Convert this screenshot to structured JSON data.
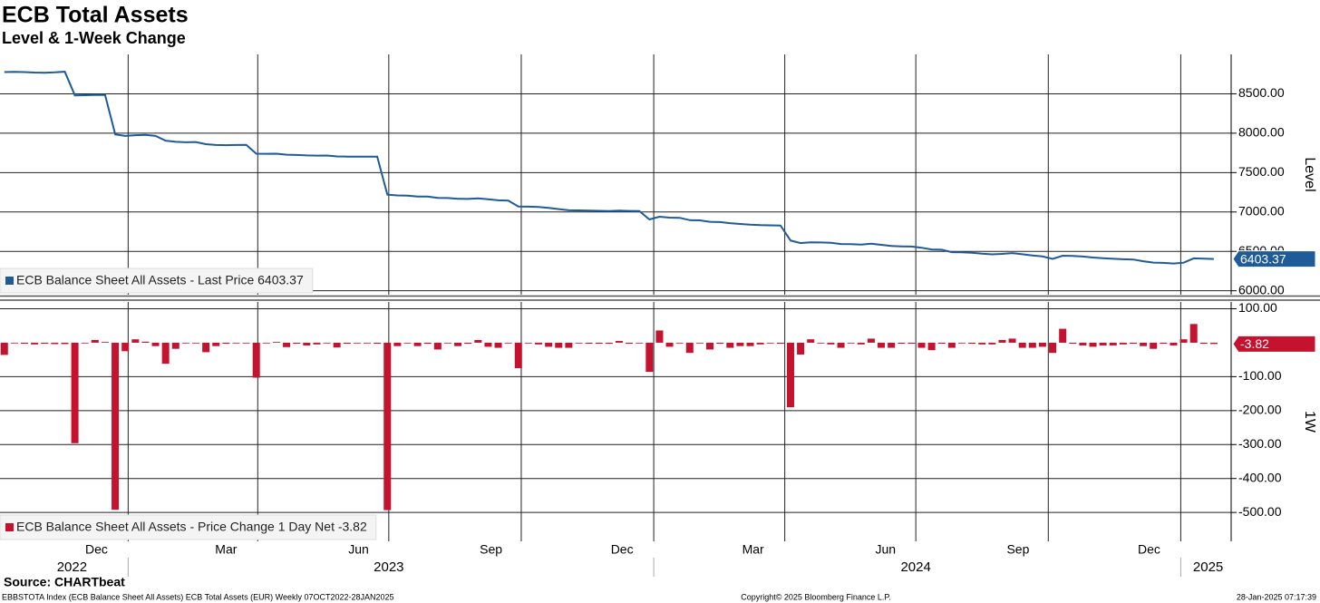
{
  "chart_data": [
    {
      "type": "line",
      "title": "ECB Total Assets",
      "subtitle": "Level & 1-Week Change",
      "y_label": "Level",
      "x": [
        "2022-10-07",
        "2022-10-14",
        "2022-10-21",
        "2022-10-28",
        "2022-11-04",
        "2022-11-11",
        "2022-11-18",
        "2022-11-25",
        "2022-12-02",
        "2022-12-09",
        "2022-12-16",
        "2022-12-23",
        "2022-12-30",
        "2023-01-06",
        "2023-01-13",
        "2023-01-20",
        "2023-01-27",
        "2023-02-03",
        "2023-02-10",
        "2023-02-17",
        "2023-02-24",
        "2023-03-03",
        "2023-03-10",
        "2023-03-17",
        "2023-03-24",
        "2023-03-31",
        "2023-04-07",
        "2023-04-14",
        "2023-04-21",
        "2023-04-28",
        "2023-05-05",
        "2023-05-12",
        "2023-05-19",
        "2023-05-26",
        "2023-06-02",
        "2023-06-09",
        "2023-06-16",
        "2023-06-23",
        "2023-06-30",
        "2023-07-07",
        "2023-07-14",
        "2023-07-21",
        "2023-07-28",
        "2023-08-04",
        "2023-08-11",
        "2023-08-18",
        "2023-08-25",
        "2023-09-01",
        "2023-09-08",
        "2023-09-15",
        "2023-09-22",
        "2023-09-29",
        "2023-10-06",
        "2023-10-13",
        "2023-10-20",
        "2023-10-27",
        "2023-11-03",
        "2023-11-10",
        "2023-11-17",
        "2023-11-24",
        "2023-12-01",
        "2023-12-08",
        "2023-12-15",
        "2023-12-22",
        "2023-12-29",
        "2024-01-05",
        "2024-01-12",
        "2024-01-19",
        "2024-01-26",
        "2024-02-02",
        "2024-02-09",
        "2024-02-16",
        "2024-02-23",
        "2024-03-01",
        "2024-03-08",
        "2024-03-15",
        "2024-03-22",
        "2024-03-29",
        "2024-04-05",
        "2024-04-12",
        "2024-04-19",
        "2024-04-26",
        "2024-05-03",
        "2024-05-10",
        "2024-05-17",
        "2024-05-24",
        "2024-05-31",
        "2024-06-07",
        "2024-06-14",
        "2024-06-21",
        "2024-06-28",
        "2024-07-05",
        "2024-07-12",
        "2024-07-19",
        "2024-07-26",
        "2024-08-02",
        "2024-08-09",
        "2024-08-16",
        "2024-08-23",
        "2024-08-30",
        "2024-09-06",
        "2024-09-13",
        "2024-09-20",
        "2024-09-27",
        "2024-10-04",
        "2024-10-11",
        "2024-10-18",
        "2024-10-25",
        "2024-11-01",
        "2024-11-08",
        "2024-11-15",
        "2024-11-22",
        "2024-11-29",
        "2024-12-06",
        "2024-12-13",
        "2024-12-20",
        "2024-12-27",
        "2025-01-03",
        "2025-01-10",
        "2025-01-17",
        "2025-01-24"
      ],
      "xlim": [
        "2022-10-04",
        "2025-02-05"
      ],
      "xgrid": [
        "2023-01-01",
        "2023-04-01",
        "2023-07-01",
        "2023-10-01",
        "2024-01-01",
        "2024-04-01",
        "2024-07-01",
        "2024-10-01",
        "2025-01-01"
      ],
      "ylim": [
        5950,
        9000
      ],
      "yticks": [
        {
          "value": 6000,
          "label": "6000.00"
        },
        {
          "value": 6500,
          "label": "6500.00"
        },
        {
          "value": 7000,
          "label": "7000.00"
        },
        {
          "value": 7500,
          "label": "7500.00"
        },
        {
          "value": 8000,
          "label": "8000.00"
        },
        {
          "value": 8500,
          "label": "8500.00"
        }
      ],
      "grid": true,
      "legend": "lower left",
      "series": [
        {
          "name": "ECB Balance Sheet All Assets - Last Price 6403.37",
          "color": "#1f5b99",
          "values": [
            8776,
            8778,
            8775,
            8770,
            8768,
            8772,
            8780,
            8480,
            8482,
            8485,
            8487,
            7985,
            7965,
            7975,
            7978,
            7965,
            7905,
            7890,
            7885,
            7888,
            7860,
            7850,
            7848,
            7850,
            7852,
            7740,
            7738,
            7740,
            7727,
            7724,
            7718,
            7715,
            7717,
            7705,
            7703,
            7702,
            7702,
            7702,
            7220,
            7210,
            7208,
            7197,
            7195,
            7178,
            7177,
            7168,
            7165,
            7173,
            7162,
            7148,
            7145,
            7070,
            7068,
            7063,
            7052,
            7037,
            7022,
            7020,
            7017,
            7015,
            7012,
            7017,
            7014,
            7012,
            6905,
            6940,
            6928,
            6926,
            6896,
            6894,
            6875,
            6872,
            6858,
            6848,
            6838,
            6833,
            6831,
            6828,
            6638,
            6605,
            6615,
            6613,
            6608,
            6593,
            6591,
            6586,
            6598,
            6583,
            6568,
            6564,
            6561,
            6546,
            6524,
            6521,
            6490,
            6487,
            6483,
            6470,
            6462,
            6468,
            6478,
            6463,
            6448,
            6436,
            6405,
            6445,
            6442,
            6434,
            6422,
            6414,
            6406,
            6400,
            6397,
            6375,
            6357,
            6354,
            6346,
            6356,
            6411,
            6407,
            6403.37
          ]
        }
      ]
    },
    {
      "type": "bar",
      "y_label": "1W",
      "x": [
        "2022-10-07",
        "2022-10-14",
        "2022-10-21",
        "2022-10-28",
        "2022-11-04",
        "2022-11-11",
        "2022-11-18",
        "2022-11-25",
        "2022-12-02",
        "2022-12-09",
        "2022-12-16",
        "2022-12-23",
        "2022-12-30",
        "2023-01-06",
        "2023-01-13",
        "2023-01-20",
        "2023-01-27",
        "2023-02-03",
        "2023-02-10",
        "2023-02-17",
        "2023-02-24",
        "2023-03-03",
        "2023-03-10",
        "2023-03-17",
        "2023-03-24",
        "2023-03-31",
        "2023-04-07",
        "2023-04-14",
        "2023-04-21",
        "2023-04-28",
        "2023-05-05",
        "2023-05-12",
        "2023-05-19",
        "2023-05-26",
        "2023-06-02",
        "2023-06-09",
        "2023-06-16",
        "2023-06-23",
        "2023-06-30",
        "2023-07-07",
        "2023-07-14",
        "2023-07-21",
        "2023-07-28",
        "2023-08-04",
        "2023-08-11",
        "2023-08-18",
        "2023-08-25",
        "2023-09-01",
        "2023-09-08",
        "2023-09-15",
        "2023-09-22",
        "2023-09-29",
        "2023-10-06",
        "2023-10-13",
        "2023-10-20",
        "2023-10-27",
        "2023-11-03",
        "2023-11-10",
        "2023-11-17",
        "2023-11-24",
        "2023-12-01",
        "2023-12-08",
        "2023-12-15",
        "2023-12-22",
        "2023-12-29",
        "2024-01-05",
        "2024-01-12",
        "2024-01-19",
        "2024-01-26",
        "2024-02-02",
        "2024-02-09",
        "2024-02-16",
        "2024-02-23",
        "2024-03-01",
        "2024-03-08",
        "2024-03-15",
        "2024-03-22",
        "2024-03-29",
        "2024-04-05",
        "2024-04-12",
        "2024-04-19",
        "2024-04-26",
        "2024-05-03",
        "2024-05-10",
        "2024-05-17",
        "2024-05-24",
        "2024-05-31",
        "2024-06-07",
        "2024-06-14",
        "2024-06-21",
        "2024-06-28",
        "2024-07-05",
        "2024-07-12",
        "2024-07-19",
        "2024-07-26",
        "2024-08-02",
        "2024-08-09",
        "2024-08-16",
        "2024-08-23",
        "2024-08-30",
        "2024-09-06",
        "2024-09-13",
        "2024-09-20",
        "2024-09-27",
        "2024-10-04",
        "2024-10-11",
        "2024-10-18",
        "2024-10-25",
        "2024-11-01",
        "2024-11-08",
        "2024-11-15",
        "2024-11-22",
        "2024-11-29",
        "2024-12-06",
        "2024-12-13",
        "2024-12-20",
        "2024-12-27",
        "2025-01-03",
        "2025-01-10",
        "2025-01-17",
        "2025-01-24"
      ],
      "xlim": [
        "2022-10-04",
        "2025-02-05"
      ],
      "xgrid": [
        "2023-01-01",
        "2023-04-01",
        "2023-07-01",
        "2023-10-01",
        "2024-01-01",
        "2024-04-01",
        "2024-07-01",
        "2024-10-01",
        "2025-01-01"
      ],
      "xticks": [
        {
          "value": "2022-12-10",
          "label": "Dec"
        },
        {
          "value": "2023-03-10",
          "label": "Mar"
        },
        {
          "value": "2023-06-10",
          "label": "Jun"
        },
        {
          "value": "2023-09-10",
          "label": "Sep"
        },
        {
          "value": "2023-12-10",
          "label": "Dec"
        },
        {
          "value": "2024-03-10",
          "label": "Mar"
        },
        {
          "value": "2024-06-10",
          "label": "Jun"
        },
        {
          "value": "2024-09-10",
          "label": "Sep"
        },
        {
          "value": "2024-12-10",
          "label": "Dec"
        }
      ],
      "year_ticks": [
        {
          "value": "2022-11-23",
          "label": "2022"
        },
        {
          "value": "2023-07-01",
          "label": "2023"
        },
        {
          "value": "2024-07-01",
          "label": "2024"
        },
        {
          "value": "2025-01-20",
          "label": "2025"
        }
      ],
      "ylim": [
        -585,
        120
      ],
      "yticks": [
        {
          "value": -500,
          "label": "-500.00"
        },
        {
          "value": -400,
          "label": "-400.00"
        },
        {
          "value": -300,
          "label": "-300.00"
        },
        {
          "value": -200,
          "label": "-200.00"
        },
        {
          "value": -100,
          "label": "-100.00"
        },
        {
          "value": 100,
          "label": "100.00"
        }
      ],
      "grid": true,
      "legend": "lower left",
      "series": [
        {
          "name": "ECB Balance Sheet All Assets - Price Change 1 Day Net -3.82",
          "color": "#c4122f",
          "values": [
            -36,
            -2,
            -3,
            -5,
            -3,
            -4,
            -4,
            -296,
            0,
            8,
            2,
            -492,
            -25,
            10,
            3,
            -10,
            -62,
            -18,
            -2,
            -2,
            -28,
            -10,
            -3,
            -2,
            -2,
            -103,
            -2,
            2,
            -13,
            -3,
            -8,
            -5,
            -2,
            -14,
            -3,
            -2,
            -2,
            -3,
            -493,
            -10,
            -2,
            -10,
            -3,
            -20,
            -2,
            -10,
            -3,
            8,
            -12,
            -15,
            -2,
            -75,
            -2,
            -5,
            -12,
            -15,
            -15,
            -2,
            -3,
            -3,
            -3,
            5,
            -3,
            -2,
            -86,
            36,
            -12,
            -2,
            -30,
            -2,
            -20,
            -3,
            -15,
            -10,
            -10,
            -5,
            -2,
            -3,
            -190,
            -35,
            10,
            -2,
            -5,
            -15,
            -2,
            -5,
            12,
            -15,
            -15,
            -3,
            -3,
            -15,
            -22,
            -3,
            -15,
            -2,
            -3,
            -5,
            -5,
            8,
            12,
            -15,
            -15,
            -12,
            -30,
            41,
            -3,
            -8,
            -12,
            -8,
            -8,
            -5,
            -3,
            -10,
            -18,
            -3,
            -8,
            10,
            55,
            -3,
            -3.82
          ]
        }
      ]
    }
  ],
  "source": "Source: CHARTbeat",
  "footer": [
    "EBBSTOTA Index (ECB Balance Sheet All Assets) ECB Total Assets (EUR)  Weekly 07OCT2022-28JAN2025",
    "Copyright© 2025 Bloomberg Finance L.P.",
    "28-Jan-2025 07:17:39"
  ]
}
